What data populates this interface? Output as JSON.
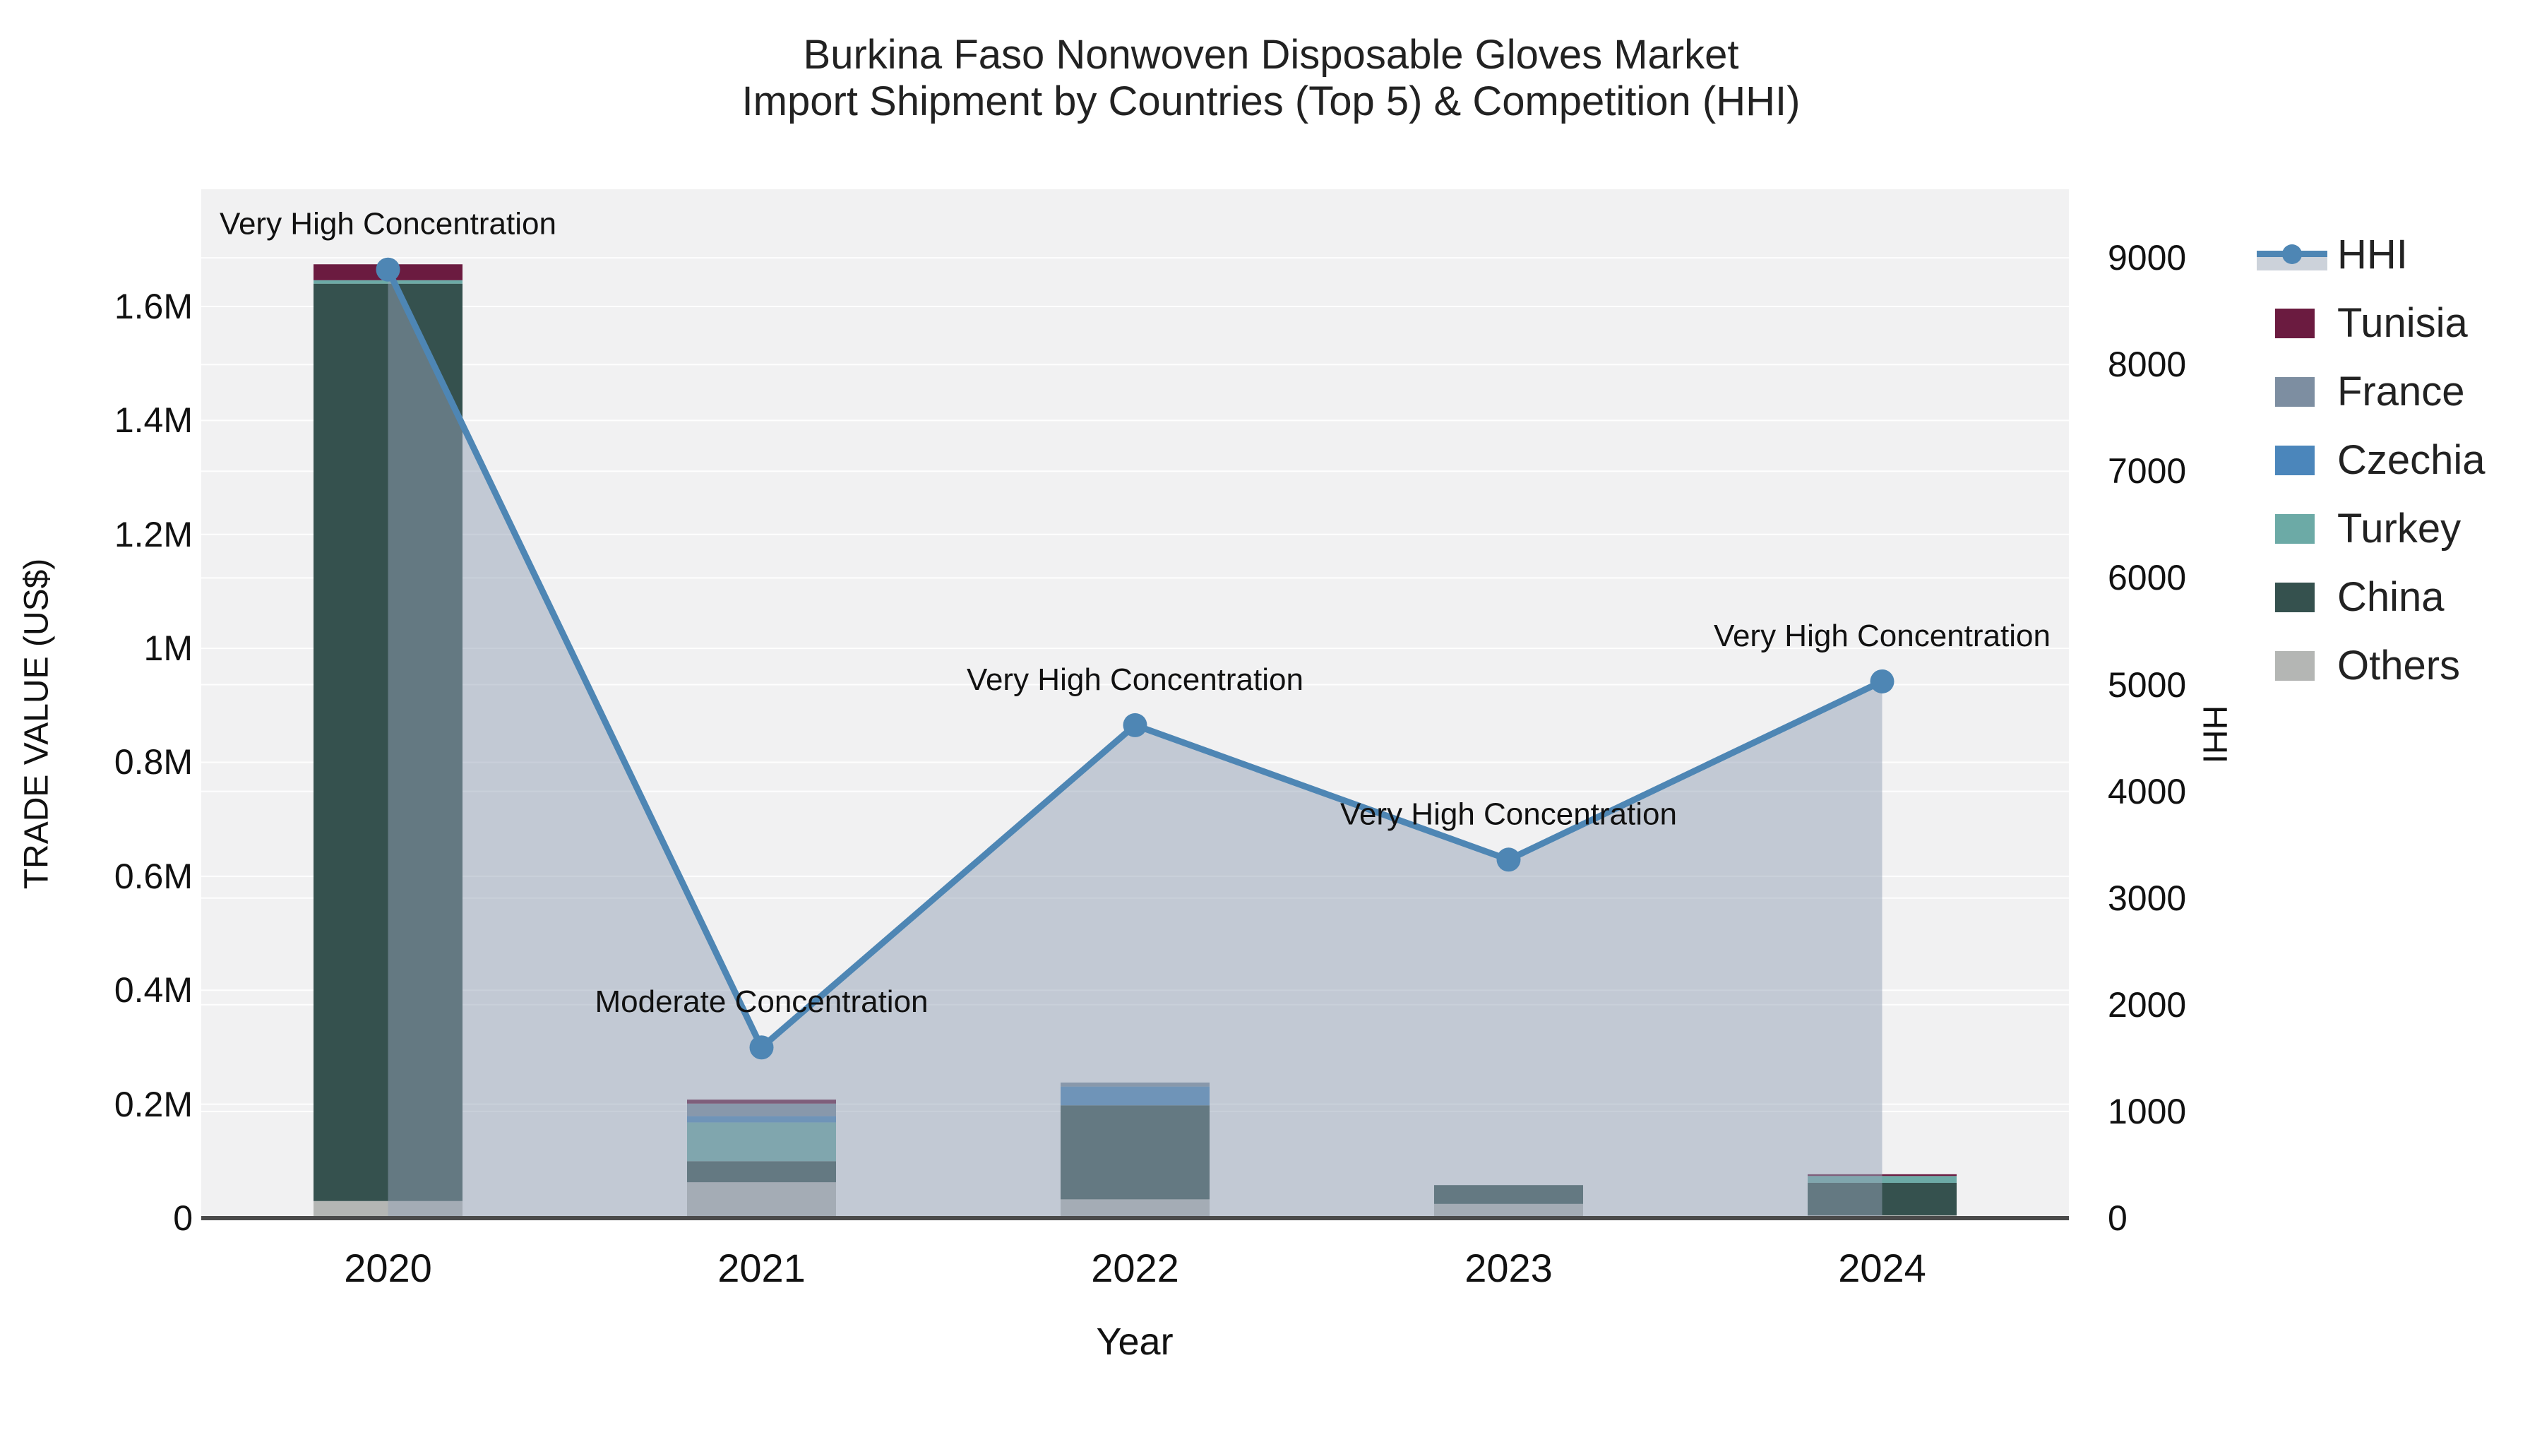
{
  "title": {
    "line1": "Burkina Faso Nonwoven Disposable Gloves Market",
    "line2": "Import Shipment by Countries (Top 5) & Competition (HHI)"
  },
  "axes": {
    "x": {
      "title": "Year",
      "tick_labels": [
        "2020",
        "2021",
        "2022",
        "2023",
        "2024"
      ]
    },
    "y_left": {
      "title": "TRADE VALUE (US$)",
      "tick_labels": [
        "0",
        "0.2M",
        "0.4M",
        "0.6M",
        "0.8M",
        "1M",
        "1.2M",
        "1.4M",
        "1.6M"
      ]
    },
    "y_right": {
      "title": "HHI",
      "tick_labels": [
        "0",
        "1000",
        "2000",
        "3000",
        "4000",
        "5000",
        "6000",
        "7000",
        "8000",
        "9000"
      ]
    }
  },
  "legend": {
    "items": [
      {
        "label": "HHI",
        "type": "line",
        "color": "#4e86b4"
      },
      {
        "label": "Tunisia",
        "type": "swatch",
        "color": "#6b1b40"
      },
      {
        "label": "France",
        "type": "swatch",
        "color": "#7d8ea1"
      },
      {
        "label": "Czechia",
        "type": "swatch",
        "color": "#4b86bb"
      },
      {
        "label": "Turkey",
        "type": "swatch",
        "color": "#6caaa6"
      },
      {
        "label": "China",
        "type": "swatch",
        "color": "#35514e"
      },
      {
        "label": "Others",
        "type": "swatch",
        "color": "#b4b6b4"
      }
    ]
  },
  "colors": {
    "plot_background": "#f1f1f2",
    "gridline": "rgba(255,255,255,0.9)",
    "zero_line": "#4a4a4a",
    "hhi_line": "#4e86b4",
    "hhi_area": "rgba(148,162,182,0.5)",
    "annotation_text": "#111111"
  },
  "chart_data": {
    "type": "bar+line",
    "categories": [
      "2020",
      "2021",
      "2022",
      "2023",
      "2024"
    ],
    "bar_unit": "US$",
    "stack_order_bottom_to_top": [
      "Others",
      "China",
      "Turkey",
      "Czechia",
      "France",
      "Tunisia"
    ],
    "series": [
      {
        "name": "Others",
        "color": "#b4b6b4",
        "values": [
          30000,
          63000,
          33000,
          25000,
          5000
        ]
      },
      {
        "name": "China",
        "color": "#35514e",
        "values": [
          1610000,
          37000,
          165000,
          33000,
          57000
        ]
      },
      {
        "name": "Turkey",
        "color": "#6caaa6",
        "values": [
          6000,
          68000,
          0,
          0,
          12000
        ]
      },
      {
        "name": "Czechia",
        "color": "#4b86bb",
        "values": [
          0,
          11000,
          33000,
          0,
          0
        ]
      },
      {
        "name": "France",
        "color": "#7d8ea1",
        "values": [
          0,
          22000,
          7000,
          0,
          0
        ]
      },
      {
        "name": "Tunisia",
        "color": "#6b1b40",
        "values": [
          28000,
          7000,
          0,
          0,
          3000
        ]
      }
    ],
    "line_series": {
      "name": "HHI",
      "color": "#4e86b4",
      "axis": "right",
      "values": [
        8890,
        1600,
        4620,
        3360,
        5030
      ]
    },
    "annotations": [
      {
        "year": "2020",
        "text": "Very High Concentration"
      },
      {
        "year": "2021",
        "text": "Moderate Concentration"
      },
      {
        "year": "2022",
        "text": "Very High Concentration"
      },
      {
        "year": "2023",
        "text": "Very High Concentration"
      },
      {
        "year": "2024",
        "text": "Very High Concentration"
      }
    ],
    "xlabel": "Year",
    "ylabel_left": "TRADE VALUE (US$)",
    "ylabel_right": "HHI",
    "y_left_range": [
      0,
      1817000
    ],
    "y_right_range": [
      0,
      9630
    ],
    "grid": true,
    "legend_position": "right"
  }
}
